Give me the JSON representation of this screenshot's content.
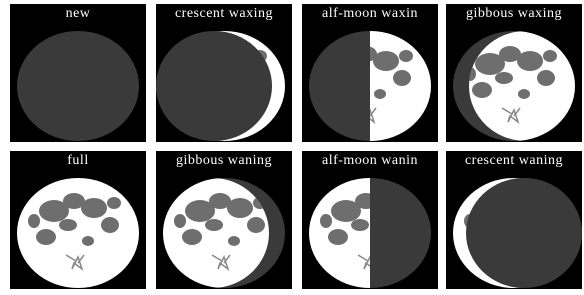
{
  "panels": [
    {
      "label": "new"
    },
    {
      "label": "crescent waxing"
    },
    {
      "label": "alf-moon waxin"
    },
    {
      "label": "gibbous waxing"
    },
    {
      "label": "full"
    },
    {
      "label": "gibbous waning"
    },
    {
      "label": "alf-moon wanin"
    },
    {
      "label": "crescent waning"
    }
  ]
}
